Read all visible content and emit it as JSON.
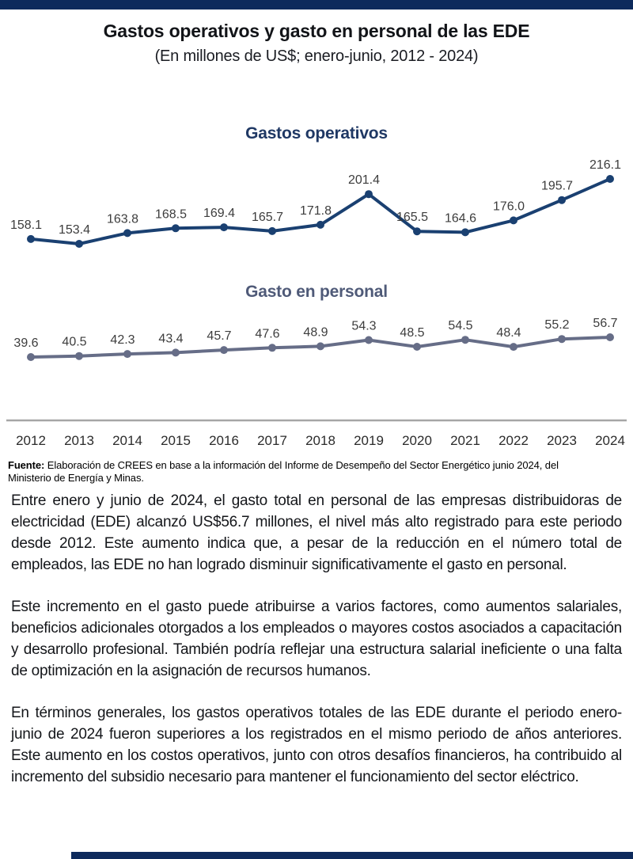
{
  "header": {
    "title": "Gastos operativos y gasto en personal de las EDE",
    "subtitle": "(En millones de US$; enero-junio, 2012 - 2024)"
  },
  "chart_data": {
    "type": "line",
    "categories": [
      "2012",
      "2013",
      "2014",
      "2015",
      "2016",
      "2017",
      "2018",
      "2019",
      "2020",
      "2021",
      "2022",
      "2023",
      "2024"
    ],
    "series": [
      {
        "name": "Gastos operativos",
        "values": [
          158.1,
          153.4,
          163.8,
          168.5,
          169.4,
          165.7,
          171.8,
          201.4,
          165.5,
          164.6,
          176.0,
          195.7,
          216.1
        ]
      },
      {
        "name": "Gasto en personal",
        "values": [
          39.6,
          40.5,
          42.3,
          43.4,
          45.7,
          47.6,
          48.9,
          54.3,
          48.5,
          54.5,
          48.4,
          55.2,
          56.7
        ]
      }
    ],
    "title": "Gastos operativos y gasto en personal de las EDE",
    "subtitle": "(En millones de US$; enero-junio, 2012 - 2024)",
    "xlabel": "",
    "ylabel": "",
    "data_labels": true,
    "grid": false,
    "legend": "series name shown as centered heading above each line"
  },
  "colors": {
    "accent_bar": "#0d2a5c",
    "series1_line": "#1a4071",
    "series1_title": "#1f3864",
    "series2_line": "#666d87",
    "series2_title": "#4f5a78",
    "axis_line": "#a6a6a6",
    "data_label": "#3d3d3d",
    "tick_label": "#2b2b2b"
  },
  "source": {
    "label": "Fuente:",
    "text": "Elaboración de CREES en base a la información del Informe de Desempeño del Sector Energético junio 2024, del Ministerio de Energía y Minas."
  },
  "body": {
    "paragraphs": [
      "Entre enero y junio de 2024, el gasto total en personal de las empresas distribuidoras de electricidad (EDE) alcanzó US$56.7 millones, el nivel más alto registrado para este periodo desde 2012. Este aumento indica que, a pesar de la reducción en el número total de empleados, las EDE no han logrado disminuir significativamente el gasto en personal.",
      "Este incremento en el gasto puede atribuirse a varios factores, como aumentos salariales, beneficios adicionales otorgados a los empleados o mayores costos asociados a capacitación y desarrollo profesional. También podría reflejar una estructura salarial ineficiente o una falta de optimización en la asignación de recursos humanos.",
      "En términos generales, los gastos operativos totales de las EDE durante el periodo enero-junio de 2024 fueron superiores a los registrados en el mismo periodo de años anteriores. Este aumento en los costos operativos, junto con otros desafíos financieros, ha contribuido al incremento del subsidio necesario para mantener el funcionamiento del sector eléctrico."
    ]
  }
}
